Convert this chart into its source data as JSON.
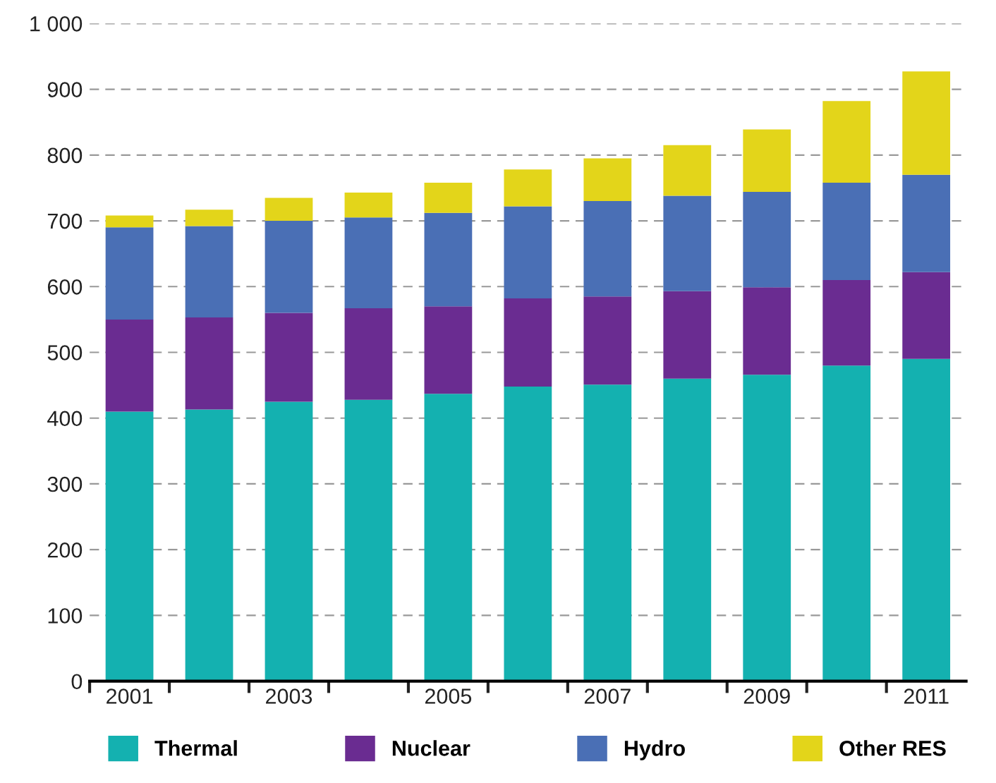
{
  "chart_data": {
    "type": "bar",
    "stacked": true,
    "categories": [
      "2001",
      null,
      "2003",
      null,
      "2005",
      null,
      "2007",
      null,
      "2009",
      null,
      "2011"
    ],
    "series": [
      {
        "name": "Thermal",
        "color": "#14b1b0",
        "values": [
          410,
          413,
          425,
          428,
          437,
          448,
          451,
          460,
          466,
          480,
          490
        ]
      },
      {
        "name": "Nuclear",
        "color": "#6a2c91",
        "values": [
          140,
          140,
          135,
          139,
          133,
          134,
          134,
          133,
          133,
          130,
          132
        ]
      },
      {
        "name": "Hydro",
        "color": "#4a6fb5",
        "values": [
          140,
          139,
          140,
          138,
          142,
          140,
          145,
          145,
          145,
          148,
          148
        ]
      },
      {
        "name": "Other RES",
        "color": "#e3d51a",
        "values": [
          18,
          25,
          35,
          38,
          46,
          56,
          65,
          77,
          95,
          124,
          157
        ]
      }
    ],
    "ylim": [
      0,
      1000
    ],
    "yticks": [
      0,
      100,
      200,
      300,
      400,
      500,
      600,
      700,
      800,
      900,
      {
        "value": 1000,
        "label": "1 000"
      }
    ],
    "grid": "y",
    "legend": "bottom"
  }
}
